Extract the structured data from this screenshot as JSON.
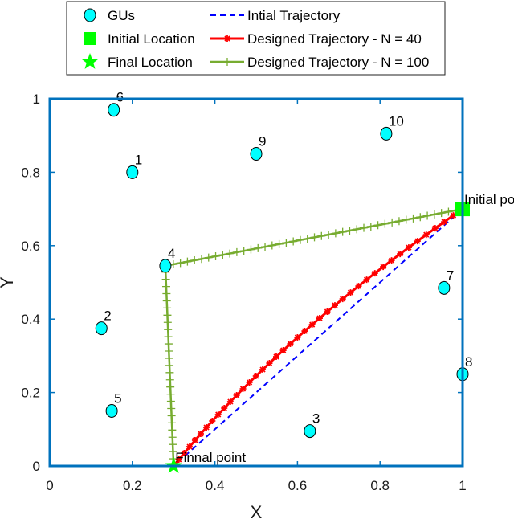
{
  "chart_data": {
    "type": "scatter",
    "xlabel": "X",
    "ylabel": "Y",
    "xlim": [
      0,
      1
    ],
    "ylim": [
      0,
      1
    ],
    "xticks": [
      "0",
      "0.2",
      "0.4",
      "0.6",
      "0.8",
      "1"
    ],
    "yticks": [
      "0",
      "0.2",
      "0.4",
      "0.6",
      "0.8",
      "1"
    ],
    "grid": false,
    "legend_position": "top-center",
    "legend": [
      {
        "label": "GUs",
        "marker": "circle",
        "color": "#00ffff"
      },
      {
        "label": "Initial Location",
        "marker": "square",
        "color": "#00ff00"
      },
      {
        "label": "Final Location",
        "marker": "star",
        "color": "#00ff00"
      },
      {
        "label": "Intial Trajectory",
        "line": "dashed",
        "color": "#0000ff"
      },
      {
        "label": "Designed Trajectory - N = 40",
        "line": "solid",
        "marker": "star",
        "color": "#ff0000"
      },
      {
        "label": "Designed Trajectory - N = 100",
        "line": "solid",
        "marker": "plus",
        "color": "#77ac30"
      }
    ],
    "ground_users": [
      {
        "id": "1",
        "x": 0.2,
        "y": 0.8
      },
      {
        "id": "2",
        "x": 0.125,
        "y": 0.375
      },
      {
        "id": "3",
        "x": 0.63,
        "y": 0.095
      },
      {
        "id": "4",
        "x": 0.28,
        "y": 0.545
      },
      {
        "id": "5",
        "x": 0.15,
        "y": 0.15
      },
      {
        "id": "6",
        "x": 0.155,
        "y": 0.97
      },
      {
        "id": "7",
        "x": 0.955,
        "y": 0.485
      },
      {
        "id": "8",
        "x": 1.0,
        "y": 0.25
      },
      {
        "id": "9",
        "x": 0.5,
        "y": 0.85
      },
      {
        "id": "10",
        "x": 0.815,
        "y": 0.905
      }
    ],
    "initial_location": {
      "x": 1.0,
      "y": 0.7,
      "label": "Initial point"
    },
    "final_location": {
      "x": 0.3,
      "y": 0.0,
      "label": "Finnal point"
    },
    "initial_trajectory": {
      "x": [
        1.0,
        0.3
      ],
      "y": [
        0.7,
        0.0
      ]
    },
    "trajectory_n40": {
      "control": {
        "x": 0.55,
        "y": 0.35
      },
      "count": 40
    },
    "trajectory_n100": {
      "x": [
        1.0,
        0.28,
        0.3
      ],
      "y": [
        0.7,
        0.545,
        0.0
      ],
      "count": 100
    },
    "colors": {
      "axes_frame": "#0072bd",
      "gu_fill": "#00ffff",
      "location": "#00ff00",
      "initial_traj": "#0000ff",
      "n40": "#ff0000",
      "n100": "#77ac30"
    }
  }
}
